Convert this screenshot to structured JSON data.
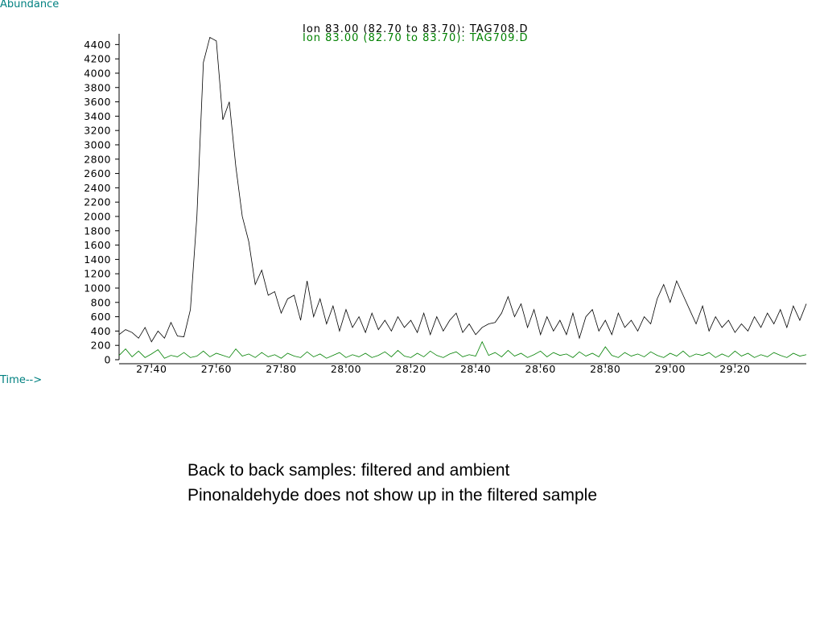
{
  "chart_data": {
    "type": "line",
    "ylabel": "Abundance",
    "xlabel": "Time-->",
    "xlim": [
      27.3,
      29.42
    ],
    "ylim": [
      0,
      4550
    ],
    "xticks": [
      {
        "value": 27.4,
        "label": "27.40"
      },
      {
        "value": 27.6,
        "label": "27.60"
      },
      {
        "value": 27.8,
        "label": "27.80"
      },
      {
        "value": 28.0,
        "label": "28.00"
      },
      {
        "value": 28.2,
        "label": "28.20"
      },
      {
        "value": 28.4,
        "label": "28.40"
      },
      {
        "value": 28.6,
        "label": "28.60"
      },
      {
        "value": 28.8,
        "label": "28.80"
      },
      {
        "value": 29.0,
        "label": "29.00"
      },
      {
        "value": 29.2,
        "label": "29.20"
      }
    ],
    "yticks": [
      0,
      200,
      400,
      600,
      800,
      1000,
      1200,
      1400,
      1600,
      1800,
      2000,
      2200,
      2400,
      2600,
      2800,
      3000,
      3200,
      3400,
      3600,
      3800,
      4000,
      4200,
      4400
    ],
    "x": [
      27.3,
      27.32,
      27.34,
      27.36,
      27.38,
      27.4,
      27.42,
      27.44,
      27.46,
      27.48,
      27.5,
      27.52,
      27.54,
      27.56,
      27.58,
      27.6,
      27.62,
      27.64,
      27.66,
      27.68,
      27.7,
      27.72,
      27.74,
      27.76,
      27.78,
      27.8,
      27.82,
      27.84,
      27.86,
      27.88,
      27.9,
      27.92,
      27.94,
      27.96,
      27.98,
      28.0,
      28.02,
      28.04,
      28.06,
      28.08,
      28.1,
      28.12,
      28.14,
      28.16,
      28.18,
      28.2,
      28.22,
      28.24,
      28.26,
      28.28,
      28.3,
      28.32,
      28.34,
      28.36,
      28.38,
      28.4,
      28.42,
      28.44,
      28.46,
      28.48,
      28.5,
      28.52,
      28.54,
      28.56,
      28.58,
      28.6,
      28.62,
      28.64,
      28.66,
      28.68,
      28.7,
      28.72,
      28.74,
      28.76,
      28.78,
      28.8,
      28.82,
      28.84,
      28.86,
      28.88,
      28.9,
      28.92,
      28.94,
      28.96,
      28.98,
      29.0,
      29.02,
      29.04,
      29.06,
      29.08,
      29.1,
      29.12,
      29.14,
      29.16,
      29.18,
      29.2,
      29.22,
      29.24,
      29.26,
      29.28,
      29.3,
      29.32,
      29.34,
      29.36,
      29.38,
      29.4,
      29.42
    ],
    "series": [
      {
        "name": "Ion  83.00 (82.70 to 83.70): TAG708.D",
        "color": "#000000",
        "values": [
          350,
          420,
          380,
          300,
          450,
          250,
          400,
          300,
          520,
          330,
          320,
          700,
          2000,
          4150,
          4500,
          4450,
          3350,
          3600,
          2700,
          2000,
          1650,
          1050,
          1250,
          900,
          950,
          650,
          850,
          900,
          550,
          1100,
          600,
          850,
          500,
          750,
          400,
          700,
          450,
          600,
          380,
          650,
          420,
          550,
          400,
          600,
          450,
          550,
          380,
          650,
          350,
          600,
          400,
          550,
          650,
          380,
          500,
          350,
          450,
          500,
          520,
          650,
          880,
          600,
          780,
          450,
          700,
          350,
          600,
          400,
          550,
          350,
          650,
          300,
          600,
          700,
          400,
          550,
          350,
          650,
          450,
          550,
          400,
          600,
          500,
          850,
          1050,
          800,
          1100,
          900,
          700,
          500,
          750,
          400,
          600,
          450,
          550,
          380,
          500,
          400,
          600,
          450,
          650,
          500,
          700,
          450,
          750,
          550,
          780
        ]
      },
      {
        "name": "Ion  83.00 (82.70 to 83.70): TAG709.D",
        "color": "#008000",
        "values": [
          60,
          150,
          40,
          120,
          30,
          80,
          140,
          20,
          60,
          40,
          100,
          30,
          50,
          120,
          40,
          90,
          60,
          30,
          150,
          50,
          80,
          30,
          100,
          40,
          70,
          20,
          90,
          50,
          30,
          110,
          40,
          80,
          20,
          60,
          100,
          30,
          70,
          40,
          90,
          30,
          60,
          110,
          40,
          130,
          50,
          30,
          90,
          40,
          120,
          60,
          30,
          80,
          110,
          40,
          70,
          50,
          250,
          60,
          100,
          40,
          130,
          50,
          90,
          30,
          70,
          120,
          40,
          100,
          60,
          80,
          30,
          110,
          50,
          90,
          40,
          180,
          60,
          30,
          100,
          50,
          80,
          40,
          110,
          60,
          30,
          90,
          50,
          120,
          40,
          80,
          60,
          100,
          30,
          80,
          40,
          120,
          50,
          90,
          30,
          70,
          40,
          100,
          60,
          30,
          90,
          50,
          70
        ]
      }
    ],
    "annotations": [
      "Back to back samples:  filtered and ambient",
      "Pinonaldehyde does not show up in the filtered sample"
    ]
  }
}
